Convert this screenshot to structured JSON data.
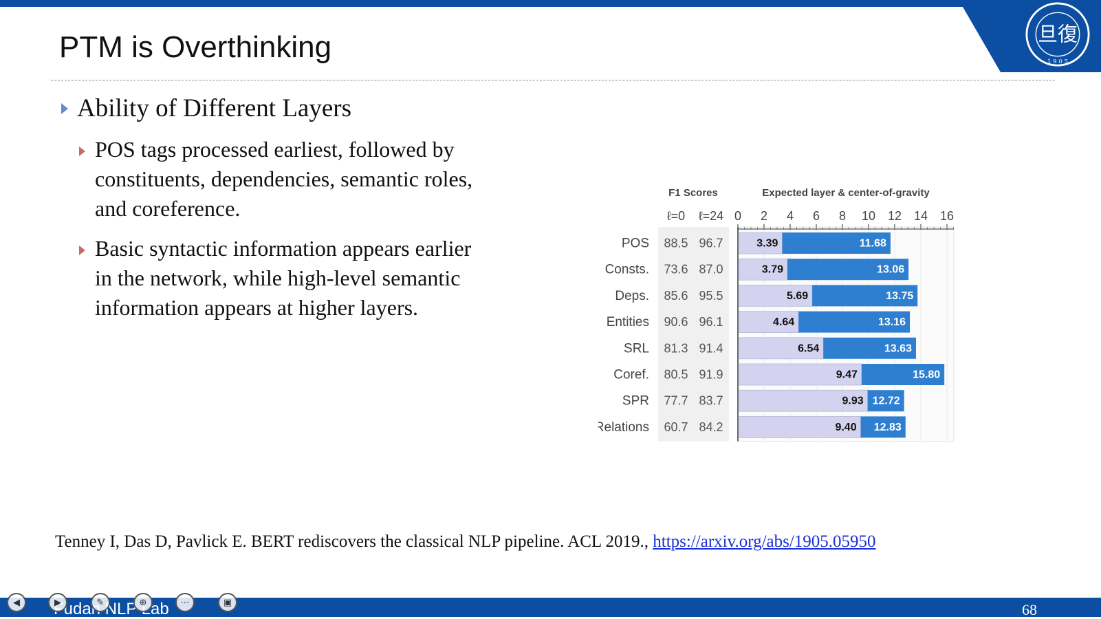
{
  "slide": {
    "title": "PTM is Overthinking",
    "bullet1": "Ability of Different Layers",
    "sub_bullets": [
      [
        "POS tags processed earliest, followed by",
        "constituents, dependencies, semantic roles,",
        "and coreference."
      ],
      [
        "Basic syntactic information appears earlier",
        "in the network, while high-level semantic",
        "information appears at higher layers."
      ]
    ],
    "reference_text": "Tenney I, Das D, Pavlick E. BERT rediscovers the classical NLP pipeline. ACL 2019., ",
    "reference_link": "https://arxiv.org/abs/1905.05950",
    "footer": "Fudan NLP Lab",
    "page_number": "68",
    "logo_text": "FUDAN UNIVERSITY",
    "logo_year": "1905"
  },
  "colors": {
    "brand_blue": "#0b4ea2",
    "bar_dark": "#2f7fd0",
    "bar_light": "#d3d3ef",
    "bullet_level1": "#5b8fd1",
    "bullet_level2": "#c46a6a"
  },
  "controls": [
    "back-icon",
    "play-icon",
    "pen-icon",
    "zoom-icon",
    "more-icon",
    "screen-icon"
  ],
  "chart_data": {
    "type": "bar",
    "headers": {
      "f1": "F1 Scores",
      "expected": "Expected layer & center-of-gravity"
    },
    "f1_columns": [
      "ℓ=0",
      "ℓ=24"
    ],
    "x_ticks": [
      0,
      2,
      4,
      6,
      8,
      10,
      12,
      14,
      16
    ],
    "xlim": [
      0,
      16.5
    ],
    "categories": [
      "POS",
      "Consts.",
      "Deps.",
      "Entities",
      "SRL",
      "Coref.",
      "SPR",
      "Relations"
    ],
    "f1_l0": [
      88.5,
      73.6,
      85.6,
      90.6,
      81.3,
      80.5,
      77.7,
      60.7
    ],
    "f1_l24": [
      96.7,
      87.0,
      95.5,
      96.1,
      91.4,
      91.9,
      83.7,
      84.2
    ],
    "series": [
      {
        "values": [
          3.39,
          3.79,
          5.69,
          4.64,
          6.54,
          9.47,
          9.93,
          9.4
        ]
      },
      {
        "values": [
          11.68,
          13.06,
          13.75,
          13.16,
          13.63,
          15.8,
          12.72,
          12.83
        ]
      }
    ],
    "grid": true
  }
}
